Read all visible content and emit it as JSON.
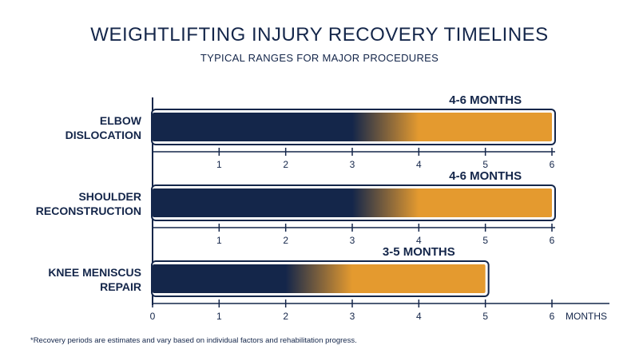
{
  "title": "WEIGHTLIFTING INJURY RECOVERY TIMELINES",
  "subtitle": "TYPICAL RANGES FOR MAJOR PROCEDURES",
  "footnote": "*Recovery periods are estimates and vary based on individual factors and rehabilitation progress.",
  "colors": {
    "navy": "#14264a",
    "orange": "#e49a2f",
    "axis": "#14264a",
    "background": "#ffffff"
  },
  "chart_data": {
    "type": "bar",
    "orientation": "horizontal",
    "title": "WEIGHTLIFTING INJURY RECOVERY TIMELINES",
    "subtitle": "TYPICAL RANGES FOR MAJOR PROCEDURES",
    "xlabel": "MONTHS",
    "ylabel": "",
    "xlim": [
      0,
      6
    ],
    "x_ticks": [
      0,
      1,
      2,
      3,
      4,
      5,
      6
    ],
    "grid": false,
    "legend": "none",
    "categories": [
      {
        "label_lines": [
          "ELBOW",
          "DISLOCATION"
        ],
        "range_label": "4-6 MONTHS",
        "min": 4,
        "max": 6
      },
      {
        "label_lines": [
          "SHOULDER",
          "RECONSTRUCTION"
        ],
        "range_label": "4-6 MONTHS",
        "min": 4,
        "max": 6
      },
      {
        "label_lines": [
          "KNEE MENISCUS",
          "REPAIR"
        ],
        "range_label": "3-5 MONTHS",
        "min": 3,
        "max": 5
      }
    ]
  }
}
